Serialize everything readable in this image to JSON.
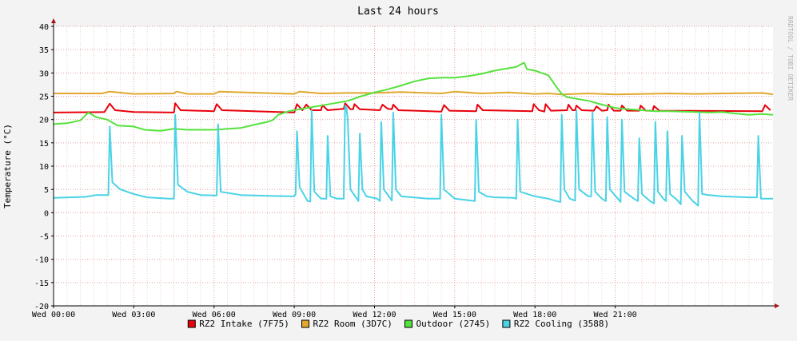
{
  "chart_data": {
    "type": "line",
    "title": "Last 24 hours",
    "ylabel": "Temperature (°C)",
    "watermark": "RRDTOOL / TOBI OETIKER",
    "ylim": [
      -20,
      40
    ],
    "yticks": [
      40,
      35,
      30,
      25,
      20,
      15,
      10,
      5,
      0,
      -5,
      -10,
      -15,
      -20
    ],
    "xlim": [
      0,
      26.9
    ],
    "xticks": [
      {
        "x": 0,
        "label": "Wed 00:00"
      },
      {
        "x": 3,
        "label": "Wed 03:00"
      },
      {
        "x": 6,
        "label": "Wed 06:00"
      },
      {
        "x": 9,
        "label": "Wed 09:00"
      },
      {
        "x": 12,
        "label": "Wed 12:00"
      },
      {
        "x": 15,
        "label": "Wed 15:00"
      },
      {
        "x": 18,
        "label": "Wed 18:00"
      },
      {
        "x": 21,
        "label": "Wed 21:00"
      }
    ],
    "grid": true,
    "legend_position": "bottom",
    "series": [
      {
        "name": "RZ2 Intake (7F75)",
        "color": "#e8000b",
        "points": [
          [
            0,
            21.5
          ],
          [
            1.9,
            21.6
          ],
          [
            2.1,
            23.4
          ],
          [
            2.3,
            22
          ],
          [
            3,
            21.6
          ],
          [
            4.5,
            21.5
          ],
          [
            4.55,
            23.5
          ],
          [
            4.75,
            22
          ],
          [
            6,
            21.8
          ],
          [
            6.1,
            23.3
          ],
          [
            6.3,
            22
          ],
          [
            9,
            21.5
          ],
          [
            9.1,
            23.3
          ],
          [
            9.3,
            22
          ],
          [
            9.45,
            23.2
          ],
          [
            9.65,
            22
          ],
          [
            10,
            22
          ],
          [
            10.05,
            23.1
          ],
          [
            10.25,
            22
          ],
          [
            10.85,
            22.3
          ],
          [
            10.9,
            23.5
          ],
          [
            11.1,
            22.2
          ],
          [
            11.2,
            22.2
          ],
          [
            11.25,
            23.3
          ],
          [
            11.45,
            22.2
          ],
          [
            12.2,
            22
          ],
          [
            12.3,
            23.2
          ],
          [
            12.5,
            22.3
          ],
          [
            12.65,
            22.2
          ],
          [
            12.7,
            23.2
          ],
          [
            12.9,
            22
          ],
          [
            14.5,
            21.7
          ],
          [
            14.6,
            23.1
          ],
          [
            14.8,
            21.9
          ],
          [
            15.8,
            21.8
          ],
          [
            15.85,
            23.2
          ],
          [
            16.05,
            22
          ],
          [
            17.9,
            21.8
          ],
          [
            17.95,
            23.3
          ],
          [
            18.15,
            22
          ],
          [
            18.35,
            21.7
          ],
          [
            18.4,
            23.3
          ],
          [
            18.6,
            21.9
          ],
          [
            19.2,
            22
          ],
          [
            19.25,
            23.2
          ],
          [
            19.4,
            22
          ],
          [
            19.5,
            22
          ],
          [
            19.55,
            23
          ],
          [
            19.75,
            22
          ],
          [
            20.2,
            21.9
          ],
          [
            20.3,
            22.8
          ],
          [
            20.5,
            21.9
          ],
          [
            20.7,
            22
          ],
          [
            20.75,
            23.2
          ],
          [
            20.95,
            21.9
          ],
          [
            21.2,
            21.9
          ],
          [
            21.25,
            23
          ],
          [
            21.45,
            21.9
          ],
          [
            21.9,
            21.9
          ],
          [
            21.95,
            23
          ],
          [
            22.15,
            21.9
          ],
          [
            22.4,
            21.9
          ],
          [
            22.45,
            22.9
          ],
          [
            22.65,
            21.9
          ],
          [
            26.5,
            21.8
          ],
          [
            26.6,
            23.1
          ],
          [
            26.8,
            22
          ]
        ]
      },
      {
        "name": "RZ2 Room (3D7C)",
        "color": "#e0a82e",
        "points": [
          [
            0,
            25.6
          ],
          [
            1.8,
            25.6
          ],
          [
            2.1,
            26
          ],
          [
            3,
            25.5
          ],
          [
            4.5,
            25.6
          ],
          [
            4.6,
            26
          ],
          [
            5,
            25.5
          ],
          [
            6,
            25.5
          ],
          [
            6.2,
            26
          ],
          [
            9,
            25.5
          ],
          [
            9.2,
            26
          ],
          [
            10,
            25.6
          ],
          [
            11,
            25.7
          ],
          [
            12,
            25.7
          ],
          [
            13,
            25.9
          ],
          [
            14.5,
            25.6
          ],
          [
            15,
            26
          ],
          [
            16,
            25.6
          ],
          [
            17,
            25.8
          ],
          [
            18,
            25.5
          ],
          [
            18.5,
            25.6
          ],
          [
            19,
            25.4
          ],
          [
            20,
            25.6
          ],
          [
            21,
            25.4
          ],
          [
            22,
            25.5
          ],
          [
            23,
            25.6
          ],
          [
            24,
            25.5
          ],
          [
            25,
            25.6
          ],
          [
            26.5,
            25.7
          ],
          [
            26.9,
            25.4
          ]
        ]
      },
      {
        "name": "Outdoor (2745)",
        "color": "#54e23c",
        "points": [
          [
            0,
            19
          ],
          [
            0.5,
            19.2
          ],
          [
            1,
            19.8
          ],
          [
            1.3,
            21.5
          ],
          [
            1.6,
            20.5
          ],
          [
            2,
            20
          ],
          [
            2.4,
            18.7
          ],
          [
            3,
            18.5
          ],
          [
            3.4,
            17.8
          ],
          [
            4,
            17.6
          ],
          [
            4.5,
            18
          ],
          [
            5,
            17.8
          ],
          [
            6,
            17.8
          ],
          [
            7,
            18.2
          ],
          [
            7.6,
            19
          ],
          [
            8,
            19.5
          ],
          [
            8.2,
            19.9
          ],
          [
            8.4,
            21
          ],
          [
            8.8,
            21.8
          ],
          [
            9.5,
            22.5
          ],
          [
            10,
            23
          ],
          [
            10.5,
            23.5
          ],
          [
            11,
            24
          ],
          [
            11.5,
            25
          ],
          [
            12,
            25.8
          ],
          [
            12.5,
            26.5
          ],
          [
            13,
            27.3
          ],
          [
            13.5,
            28.2
          ],
          [
            14,
            28.8
          ],
          [
            14.5,
            29
          ],
          [
            15,
            29
          ],
          [
            15.5,
            29.3
          ],
          [
            16,
            29.8
          ],
          [
            16.5,
            30.5
          ],
          [
            17,
            31
          ],
          [
            17.3,
            31.3
          ],
          [
            17.6,
            32.2
          ],
          [
            17.7,
            30.8
          ],
          [
            18,
            30.5
          ],
          [
            18.5,
            29.5
          ],
          [
            18.8,
            27
          ],
          [
            19,
            25.5
          ],
          [
            19.2,
            24.8
          ],
          [
            19.5,
            24.5
          ],
          [
            20,
            24
          ],
          [
            20.5,
            23.2
          ],
          [
            21,
            22.5
          ],
          [
            21.5,
            22.2
          ],
          [
            22,
            22
          ],
          [
            22.5,
            21.8
          ],
          [
            23,
            21.8
          ],
          [
            23.5,
            21.7
          ],
          [
            24,
            21.6
          ],
          [
            24.5,
            21.5
          ],
          [
            25,
            21.6
          ],
          [
            25.5,
            21.3
          ],
          [
            26,
            21
          ],
          [
            26.5,
            21.2
          ],
          [
            26.9,
            21
          ]
        ]
      },
      {
        "name": "RZ2 Cooling (3588)",
        "color": "#4ad3e6",
        "points": [
          [
            0,
            3.2
          ],
          [
            1.2,
            3.4
          ],
          [
            1.6,
            3.8
          ],
          [
            2.05,
            3.8
          ],
          [
            2.1,
            18.5
          ],
          [
            2.2,
            6.5
          ],
          [
            2.5,
            5
          ],
          [
            3,
            4
          ],
          [
            3.5,
            3.3
          ],
          [
            4.3,
            3
          ],
          [
            4.5,
            3
          ],
          [
            4.55,
            21
          ],
          [
            4.65,
            6
          ],
          [
            5,
            4.5
          ],
          [
            5.5,
            3.8
          ],
          [
            6,
            3.7
          ],
          [
            6.1,
            3.7
          ],
          [
            6.15,
            19
          ],
          [
            6.25,
            4.5
          ],
          [
            7,
            3.8
          ],
          [
            8,
            3.6
          ],
          [
            9,
            3.5
          ],
          [
            9.05,
            4
          ],
          [
            9.1,
            17.5
          ],
          [
            9.2,
            5.5
          ],
          [
            9.5,
            2.5
          ],
          [
            9.6,
            2.4
          ],
          [
            9.65,
            22
          ],
          [
            9.75,
            4.5
          ],
          [
            10,
            3
          ],
          [
            10.2,
            3
          ],
          [
            10.25,
            16.5
          ],
          [
            10.35,
            3.5
          ],
          [
            10.6,
            3
          ],
          [
            10.85,
            3
          ],
          [
            10.9,
            23
          ],
          [
            10.95,
            22.5
          ],
          [
            11,
            20
          ],
          [
            11.1,
            5
          ],
          [
            11.4,
            2.5
          ],
          [
            11.45,
            17
          ],
          [
            11.55,
            5
          ],
          [
            11.7,
            3.5
          ],
          [
            12.1,
            3
          ],
          [
            12.2,
            2.5
          ],
          [
            12.25,
            19.5
          ],
          [
            12.35,
            5
          ],
          [
            12.6,
            3
          ],
          [
            12.65,
            2.6
          ],
          [
            12.7,
            21.5
          ],
          [
            12.8,
            5
          ],
          [
            13,
            3.5
          ],
          [
            14,
            3
          ],
          [
            14.45,
            3
          ],
          [
            14.5,
            21
          ],
          [
            14.6,
            5
          ],
          [
            15,
            3
          ],
          [
            15.75,
            2.5
          ],
          [
            15.8,
            20
          ],
          [
            15.9,
            4.5
          ],
          [
            16.2,
            3.5
          ],
          [
            16.5,
            3.3
          ],
          [
            17.2,
            3.2
          ],
          [
            17.3,
            3
          ],
          [
            17.35,
            20
          ],
          [
            17.45,
            4.5
          ],
          [
            18,
            3.5
          ],
          [
            18.5,
            3
          ],
          [
            18.8,
            2.5
          ],
          [
            18.95,
            2.3
          ],
          [
            19,
            21
          ],
          [
            19.1,
            5
          ],
          [
            19.3,
            3
          ],
          [
            19.5,
            2.6
          ],
          [
            19.55,
            22
          ],
          [
            19.65,
            5
          ],
          [
            20,
            3.5
          ],
          [
            20.1,
            3.5
          ],
          [
            20.15,
            21.5
          ],
          [
            20.25,
            4.5
          ],
          [
            20.5,
            3
          ],
          [
            20.65,
            2.5
          ],
          [
            20.7,
            20.5
          ],
          [
            20.8,
            5
          ],
          [
            21.1,
            3
          ],
          [
            21.2,
            2.3
          ],
          [
            21.25,
            20
          ],
          [
            21.35,
            4.5
          ],
          [
            21.7,
            3
          ],
          [
            21.85,
            2.5
          ],
          [
            21.9,
            16
          ],
          [
            22,
            4
          ],
          [
            22.3,
            2.5
          ],
          [
            22.45,
            2
          ],
          [
            22.5,
            19.5
          ],
          [
            22.6,
            4.5
          ],
          [
            22.8,
            3
          ],
          [
            22.9,
            2.5
          ],
          [
            22.95,
            17.5
          ],
          [
            23.05,
            4
          ],
          [
            23.3,
            2.8
          ],
          [
            23.45,
            1.8
          ],
          [
            23.5,
            16.5
          ],
          [
            23.6,
            4.5
          ],
          [
            23.9,
            2.5
          ],
          [
            24.1,
            1.5
          ],
          [
            24.15,
            21.5
          ],
          [
            24.25,
            4
          ],
          [
            24.5,
            3.8
          ],
          [
            25,
            3.5
          ],
          [
            26,
            3.3
          ],
          [
            26.3,
            3.3
          ],
          [
            26.35,
            16.5
          ],
          [
            26.45,
            3
          ],
          [
            26.9,
            3
          ]
        ]
      }
    ]
  }
}
